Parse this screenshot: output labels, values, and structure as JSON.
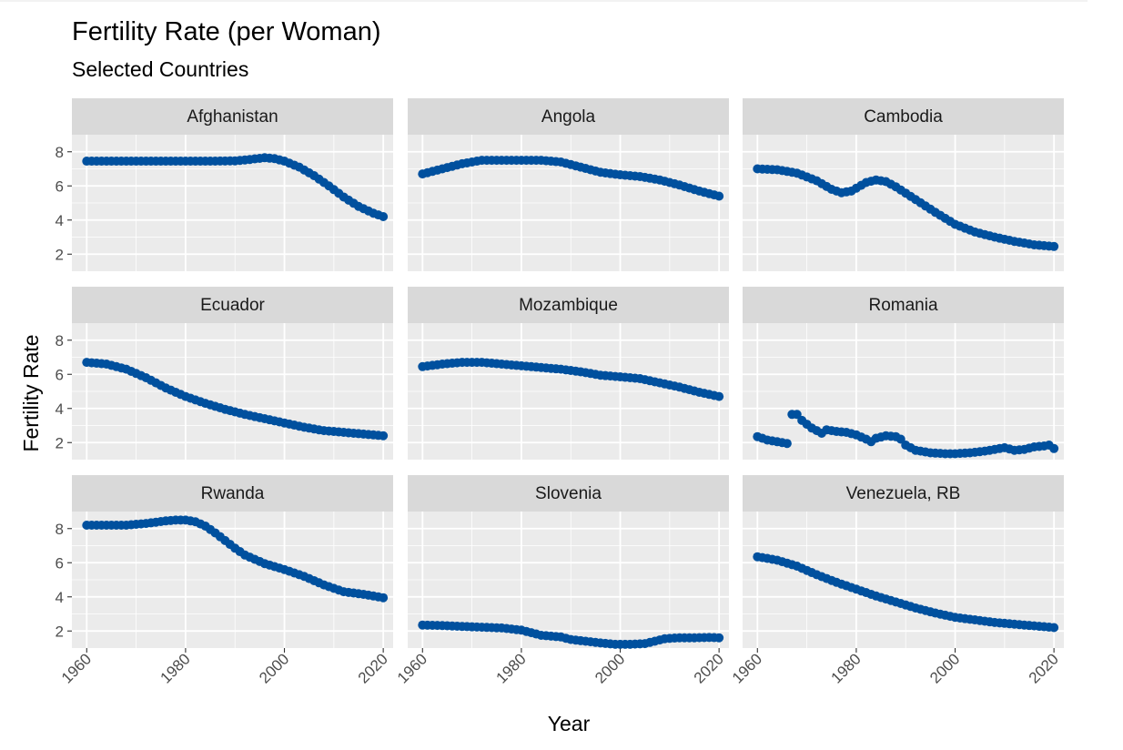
{
  "chart_data": {
    "type": "scatter",
    "title": "Fertility Rate (per Woman)",
    "subtitle": "Selected Countries",
    "xlabel": "Year",
    "ylabel": "Fertility Rate",
    "xlim": [
      1957,
      2022
    ],
    "ylim": [
      1.0,
      9.0
    ],
    "x_ticks": [
      1960,
      1980,
      2000,
      2020
    ],
    "y_ticks": [
      2,
      4,
      6,
      8
    ],
    "x_tick_labels": [
      "1960",
      "1980",
      "2000",
      "2020"
    ],
    "y_tick_labels": [
      "2",
      "4",
      "6",
      "8"
    ],
    "grid": true,
    "point_color": "#00509E",
    "panel_background": "#EBEBEB",
    "strip_background": "#D9D9D9",
    "series": [
      {
        "name": "Afghanistan",
        "x": [
          1960,
          1965,
          1970,
          1975,
          1980,
          1985,
          1990,
          1993,
          1996,
          1998,
          2000,
          2003,
          2006,
          2009,
          2012,
          2015,
          2018,
          2020
        ],
        "y": [
          7.45,
          7.45,
          7.45,
          7.45,
          7.45,
          7.45,
          7.47,
          7.55,
          7.65,
          7.6,
          7.45,
          7.1,
          6.6,
          6.0,
          5.35,
          4.8,
          4.4,
          4.2
        ]
      },
      {
        "name": "Angola",
        "x": [
          1960,
          1964,
          1968,
          1972,
          1976,
          1980,
          1984,
          1988,
          1992,
          1996,
          2000,
          2004,
          2008,
          2012,
          2016,
          2020
        ],
        "y": [
          6.7,
          7.0,
          7.3,
          7.5,
          7.5,
          7.5,
          7.5,
          7.4,
          7.1,
          6.8,
          6.65,
          6.55,
          6.35,
          6.05,
          5.7,
          5.4
        ]
      },
      {
        "name": "Cambodia",
        "x": [
          1960,
          1964,
          1968,
          1972,
          1975,
          1977,
          1979,
          1982,
          1984,
          1986,
          1988,
          1992,
          1996,
          2000,
          2004,
          2008,
          2012,
          2016,
          2020
        ],
        "y": [
          7.0,
          6.95,
          6.75,
          6.3,
          5.8,
          5.6,
          5.7,
          6.2,
          6.35,
          6.25,
          5.95,
          5.2,
          4.45,
          3.75,
          3.3,
          3.0,
          2.75,
          2.55,
          2.45
        ]
      },
      {
        "name": "Ecuador",
        "x": [
          1960,
          1964,
          1968,
          1972,
          1976,
          1980,
          1984,
          1988,
          1992,
          1996,
          2000,
          2004,
          2008,
          2012,
          2016,
          2020
        ],
        "y": [
          6.7,
          6.6,
          6.3,
          5.8,
          5.2,
          4.7,
          4.3,
          3.95,
          3.65,
          3.4,
          3.15,
          2.9,
          2.7,
          2.6,
          2.5,
          2.4
        ]
      },
      {
        "name": "Mozambique",
        "x": [
          1960,
          1964,
          1968,
          1972,
          1976,
          1980,
          1984,
          1988,
          1992,
          1996,
          2000,
          2004,
          2008,
          2012,
          2016,
          2020
        ],
        "y": [
          6.45,
          6.6,
          6.7,
          6.7,
          6.6,
          6.5,
          6.4,
          6.3,
          6.15,
          5.95,
          5.85,
          5.75,
          5.5,
          5.25,
          4.95,
          4.7
        ]
      },
      {
        "name": "Romania",
        "x": [
          1960,
          1962,
          1964,
          1966,
          1967,
          1968,
          1969,
          1971,
          1973,
          1974,
          1976,
          1978,
          1980,
          1982,
          1983,
          1984,
          1986,
          1988,
          1989,
          1990,
          1992,
          1995,
          1998,
          2000,
          2003,
          2006,
          2008,
          2010,
          2012,
          2014,
          2016,
          2018,
          2019,
          2020
        ],
        "y": [
          2.35,
          2.15,
          2.05,
          1.95,
          3.65,
          3.65,
          3.3,
          2.85,
          2.55,
          2.75,
          2.65,
          2.6,
          2.45,
          2.2,
          2.05,
          2.25,
          2.4,
          2.35,
          2.2,
          1.85,
          1.55,
          1.4,
          1.35,
          1.35,
          1.4,
          1.5,
          1.6,
          1.7,
          1.55,
          1.6,
          1.75,
          1.8,
          1.85,
          1.65
        ]
      },
      {
        "name": "Rwanda",
        "x": [
          1960,
          1964,
          1968,
          1972,
          1976,
          1978,
          1980,
          1982,
          1984,
          1986,
          1988,
          1990,
          1992,
          1996,
          2000,
          2004,
          2008,
          2012,
          2016,
          2020
        ],
        "y": [
          8.2,
          8.2,
          8.2,
          8.3,
          8.45,
          8.5,
          8.5,
          8.4,
          8.15,
          7.75,
          7.3,
          6.85,
          6.45,
          5.95,
          5.6,
          5.2,
          4.7,
          4.3,
          4.15,
          3.95
        ]
      },
      {
        "name": "Slovenia",
        "x": [
          1960,
          1964,
          1968,
          1972,
          1976,
          1980,
          1982,
          1984,
          1986,
          1988,
          1990,
          1993,
          1996,
          1999,
          2002,
          2005,
          2007,
          2009,
          2012,
          2015,
          2018,
          2020
        ],
        "y": [
          2.35,
          2.32,
          2.27,
          2.22,
          2.18,
          2.05,
          1.9,
          1.75,
          1.7,
          1.65,
          1.5,
          1.4,
          1.3,
          1.22,
          1.22,
          1.26,
          1.4,
          1.55,
          1.6,
          1.6,
          1.62,
          1.6
        ]
      },
      {
        "name": "Venezuela, RB",
        "x": [
          1960,
          1964,
          1968,
          1972,
          1976,
          1980,
          1984,
          1988,
          1992,
          1996,
          2000,
          2004,
          2008,
          2012,
          2016,
          2020
        ],
        "y": [
          6.35,
          6.15,
          5.8,
          5.3,
          4.85,
          4.45,
          4.05,
          3.7,
          3.35,
          3.05,
          2.8,
          2.65,
          2.5,
          2.4,
          2.3,
          2.2
        ]
      }
    ]
  }
}
